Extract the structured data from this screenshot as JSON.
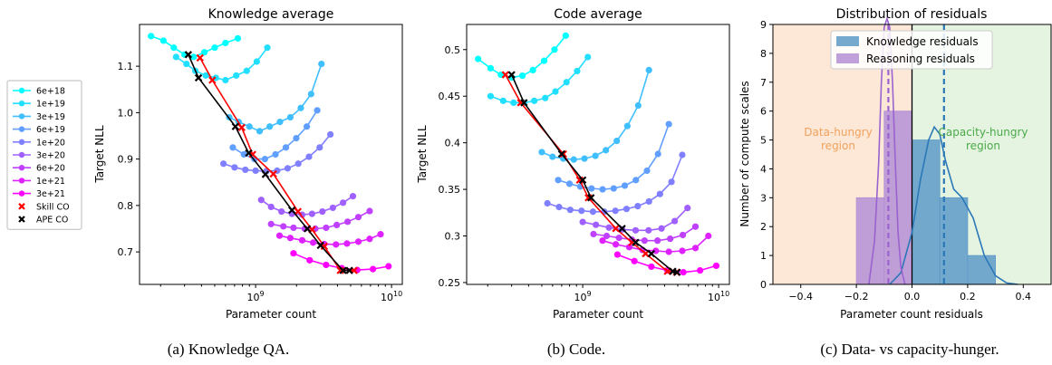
{
  "legend": {
    "entries": [
      {
        "label": "6e+18",
        "color": "#00ffff",
        "marker": "dot"
      },
      {
        "label": "1e+19",
        "color": "#20dfff",
        "marker": "dot"
      },
      {
        "label": "3e+19",
        "color": "#40bfff",
        "marker": "dot"
      },
      {
        "label": "6e+19",
        "color": "#609fff",
        "marker": "dot"
      },
      {
        "label": "1e+20",
        "color": "#807fff",
        "marker": "dot"
      },
      {
        "label": "3e+20",
        "color": "#9f60ff",
        "marker": "dot"
      },
      {
        "label": "6e+20",
        "color": "#bf40ff",
        "marker": "dot"
      },
      {
        "label": "1e+21",
        "color": "#df20ff",
        "marker": "dot"
      },
      {
        "label": "3e+21",
        "color": "#ff00ff",
        "marker": "dot"
      },
      {
        "label": "Skill CO",
        "color": "#ff0000",
        "marker": "x"
      },
      {
        "label": "APE CO",
        "color": "#000000",
        "marker": "x"
      }
    ]
  },
  "chart_data": [
    {
      "type": "line",
      "title": "Knowledge average",
      "xlabel": "Parameter count",
      "ylabel": "Target NLL",
      "xscale": "log",
      "xlim": [
        140000000.0,
        12000000000.0
      ],
      "ylim": [
        0.63,
        1.19
      ],
      "xticks": [
        {
          "value": 1000000000.0,
          "base": "10",
          "exp": "9"
        },
        {
          "value": 10000000000.0,
          "base": "10",
          "exp": "10"
        }
      ],
      "yticks": [
        0.7,
        0.8,
        0.9,
        1.0,
        1.1
      ],
      "series": [
        {
          "color": "#00ffff",
          "x": [
            170000000.0,
            210000000.0,
            250000000.0,
            300000000.0,
            350000000.0,
            420000000.0,
            500000000.0,
            600000000.0,
            740000000.0
          ],
          "y": [
            1.165,
            1.155,
            1.14,
            1.125,
            1.12,
            1.13,
            1.14,
            1.15,
            1.16
          ]
        },
        {
          "color": "#20dfff",
          "x": [
            260000000.0,
            310000000.0,
            360000000.0,
            430000000.0,
            510000000.0,
            600000000.0,
            720000000.0,
            860000000.0,
            1020000000.0,
            1220000000.0
          ],
          "y": [
            1.12,
            1.105,
            1.09,
            1.08,
            1.075,
            1.07,
            1.08,
            1.09,
            1.11,
            1.14
          ]
        },
        {
          "color": "#40bfff",
          "x": [
            640000000.0,
            750000000.0,
            900000000.0,
            1070000000.0,
            1270000000.0,
            1510000000.0,
            1800000000.0,
            2150000000.0,
            2560000000.0,
            3050000000.0
          ],
          "y": [
            0.99,
            0.98,
            0.97,
            0.96,
            0.97,
            0.98,
            0.99,
            1.01,
            1.04,
            1.105
          ]
        },
        {
          "color": "#609fff",
          "x": [
            680000000.0,
            820000000.0,
            980000000.0,
            1170000000.0,
            1400000000.0,
            1670000000.0,
            1990000000.0,
            2380000000.0,
            2840000000.0
          ],
          "y": [
            0.925,
            0.91,
            0.9,
            0.9,
            0.91,
            0.925,
            0.945,
            0.97,
            1.005
          ]
        },
        {
          "color": "#807fff",
          "x": [
            580000000.0,
            700000000.0,
            840000000.0,
            1000000000.0,
            1200000000.0,
            1440000000.0,
            1720000000.0,
            2060000000.0,
            2470000000.0,
            2960000000.0,
            3550000000.0
          ],
          "y": [
            0.89,
            0.882,
            0.877,
            0.875,
            0.874,
            0.875,
            0.88,
            0.89,
            0.905,
            0.925,
            0.953
          ]
        },
        {
          "color": "#9f60ff",
          "x": [
            1100000000.0,
            1300000000.0,
            1550000000.0,
            1850000000.0,
            2200000000.0,
            2600000000.0,
            3100000000.0,
            3700000000.0,
            4400000000.0,
            5200000000.0
          ],
          "y": [
            0.812,
            0.797,
            0.787,
            0.782,
            0.78,
            0.782,
            0.787,
            0.795,
            0.806,
            0.82
          ]
        },
        {
          "color": "#bf40ff",
          "x": [
            1300000000.0,
            1600000000.0,
            1900000000.0,
            2300000000.0,
            2750000000.0,
            3300000000.0,
            3950000000.0,
            4750000000.0,
            5700000000.0,
            6900000000.0
          ],
          "y": [
            0.76,
            0.755,
            0.752,
            0.75,
            0.75,
            0.752,
            0.758,
            0.765,
            0.775,
            0.788
          ]
        },
        {
          "color": "#df20ff",
          "x": [
            1500000000.0,
            1800000000.0,
            2200000000.0,
            2650000000.0,
            3200000000.0,
            3900000000.0,
            4700000000.0,
            5700000000.0,
            6900000000.0,
            8300000000.0
          ],
          "y": [
            0.735,
            0.73,
            0.725,
            0.72,
            0.717,
            0.716,
            0.718,
            0.722,
            0.728,
            0.738
          ]
        },
        {
          "color": "#ff00ff",
          "x": [
            1900000000.0,
            2500000000.0,
            3300000000.0,
            4300000000.0,
            5600000000.0,
            7300000000.0,
            9500000000.0
          ],
          "y": [
            0.697,
            0.682,
            0.672,
            0.665,
            0.661,
            0.663,
            0.669
          ]
        }
      ],
      "skill_co": {
        "x": [
          390000000.0,
          480000000.0,
          790000000.0,
          950000000.0,
          1350000000.0,
          2050000000.0,
          2600000000.0,
          3200000000.0,
          4200000000.0,
          5300000000.0
        ],
        "y": [
          1.118,
          1.07,
          0.968,
          0.91,
          0.868,
          0.787,
          0.748,
          0.712,
          0.66,
          0.66
        ]
      },
      "ape_co": {
        "x": [
          320000000.0,
          380000000.0,
          710000000.0,
          890000000.0,
          1180000000.0,
          1850000000.0,
          2400000000.0,
          3000000000.0,
          4400000000.0,
          4900000000.0
        ],
        "y": [
          1.125,
          1.075,
          0.97,
          0.913,
          0.867,
          0.79,
          0.75,
          0.714,
          0.66,
          0.66
        ]
      }
    },
    {
      "type": "line",
      "title": "Code average",
      "xlabel": "Parameter count",
      "ylabel": "Target NLL",
      "xscale": "log",
      "xlim": [
        140000000.0,
        12000000000.0
      ],
      "ylim": [
        0.248,
        0.527
      ],
      "xticks": [
        {
          "value": 1000000000.0,
          "base": "10",
          "exp": "9"
        },
        {
          "value": 10000000000.0,
          "base": "10",
          "exp": "10"
        }
      ],
      "yticks": [
        0.25,
        0.3,
        0.35,
        0.4,
        0.45,
        0.5
      ],
      "series": [
        {
          "color": "#00ffff",
          "x": [
            170000000.0,
            210000000.0,
            250000000.0,
            300000000.0,
            360000000.0,
            430000000.0,
            520000000.0,
            620000000.0,
            750000000.0
          ],
          "y": [
            0.49,
            0.48,
            0.473,
            0.47,
            0.472,
            0.478,
            0.488,
            0.5,
            0.515
          ]
        },
        {
          "color": "#20dfff",
          "x": [
            210000000.0,
            260000000.0,
            310000000.0,
            370000000.0,
            440000000.0,
            530000000.0,
            630000000.0,
            760000000.0,
            910000000.0,
            1090000000.0
          ],
          "y": [
            0.45,
            0.445,
            0.443,
            0.443,
            0.445,
            0.448,
            0.455,
            0.465,
            0.477,
            0.492
          ]
        },
        {
          "color": "#40bfff",
          "x": [
            500000000.0,
            600000000.0,
            720000000.0,
            860000000.0,
            1030000000.0,
            1240000000.0,
            1480000000.0,
            1780000000.0,
            2130000000.0,
            2560000000.0,
            3070000000.0
          ],
          "y": [
            0.39,
            0.385,
            0.383,
            0.382,
            0.383,
            0.386,
            0.392,
            0.402,
            0.418,
            0.44,
            0.478
          ]
        },
        {
          "color": "#609fff",
          "x": [
            660000000.0,
            800000000.0,
            960000000.0,
            1160000000.0,
            1400000000.0,
            1690000000.0,
            2040000000.0,
            2460000000.0,
            2970000000.0,
            3580000000.0,
            4300000000.0
          ],
          "y": [
            0.36,
            0.356,
            0.353,
            0.351,
            0.35,
            0.351,
            0.354,
            0.36,
            0.37,
            0.388,
            0.42
          ]
        },
        {
          "color": "#807fff",
          "x": [
            550000000.0,
            670000000.0,
            810000000.0,
            980000000.0,
            1190000000.0,
            1440000000.0,
            1740000000.0,
            2100000000.0,
            2540000000.0,
            3070000000.0,
            3700000000.0,
            4500000000.0,
            5400000000.0
          ],
          "y": [
            0.335,
            0.331,
            0.328,
            0.327,
            0.326,
            0.326,
            0.327,
            0.329,
            0.332,
            0.337,
            0.345,
            0.358,
            0.387
          ]
        },
        {
          "color": "#9f60ff",
          "x": [
            1000000000.0,
            1250000000.0,
            1560000000.0,
            1950000000.0,
            2450000000.0,
            3050000000.0,
            3800000000.0,
            4750000000.0,
            5900000000.0
          ],
          "y": [
            0.315,
            0.312,
            0.309,
            0.307,
            0.306,
            0.306,
            0.308,
            0.316,
            0.33
          ]
        },
        {
          "color": "#bf40ff",
          "x": [
            1200000000.0,
            1500000000.0,
            1850000000.0,
            2300000000.0,
            2850000000.0,
            3550000000.0,
            4400000000.0,
            5450000000.0,
            6750000000.0
          ],
          "y": [
            0.302,
            0.3,
            0.298,
            0.296,
            0.295,
            0.295,
            0.297,
            0.301,
            0.31
          ]
        },
        {
          "color": "#df20ff",
          "x": [
            1400000000.0,
            1750000000.0,
            2200000000.0,
            2750000000.0,
            3450000000.0,
            4300000000.0,
            5400000000.0,
            6750000000.0,
            8400000000.0
          ],
          "y": [
            0.295,
            0.291,
            0.288,
            0.285,
            0.284,
            0.283,
            0.284,
            0.287,
            0.3
          ]
        },
        {
          "color": "#ff00ff",
          "x": [
            1800000000.0,
            2400000000.0,
            3200000000.0,
            4200000000.0,
            5500000000.0,
            7300000000.0,
            9600000000.0
          ],
          "y": [
            0.28,
            0.273,
            0.267,
            0.263,
            0.261,
            0.263,
            0.268
          ]
        }
      ],
      "skill_co": {
        "x": [
          270000000.0,
          350000000.0,
          720000000.0,
          950000000.0,
          1100000000.0,
          1750000000.0,
          2300000000.0,
          2900000000.0,
          4200000000.0,
          4900000000.0
        ],
        "y": [
          0.473,
          0.443,
          0.388,
          0.36,
          0.341,
          0.308,
          0.293,
          0.281,
          0.262,
          0.261
        ]
      },
      "ape_co": {
        "x": [
          300000000.0,
          370000000.0,
          700000000.0,
          1000000000.0,
          1150000000.0,
          1950000000.0,
          2450000000.0,
          3200000000.0,
          4600000000.0,
          4950000000.0
        ],
        "y": [
          0.473,
          0.443,
          0.388,
          0.36,
          0.341,
          0.308,
          0.293,
          0.281,
          0.262,
          0.261
        ]
      }
    },
    {
      "type": "bar",
      "title": "Distribution of residuals",
      "xlabel": "Parameter count residuals",
      "ylabel": "Number of compute scales",
      "xlim": [
        -0.5,
        0.5
      ],
      "ylim": [
        0,
        9
      ],
      "xticks": [
        -0.4,
        -0.2,
        0.0,
        0.2,
        0.4
      ],
      "yticks": [
        0,
        1,
        2,
        3,
        4,
        5,
        6,
        7,
        8,
        9
      ],
      "regions": [
        {
          "label_lines": [
            "Data-hungry",
            "region"
          ],
          "range": [
            -0.5,
            0.0
          ],
          "color": "#fde8d7",
          "text_color": "#f0a25c"
        },
        {
          "label_lines": [
            "Capacity-hungry",
            "region"
          ],
          "range": [
            0.0,
            0.5
          ],
          "color": "#e5f3e1",
          "text_color": "#4aaa4a"
        }
      ],
      "series": [
        {
          "name": "Knowledge residuals",
          "color": "#5e9ac7",
          "bins": [
            {
              "x0": 0.0,
              "x1": 0.1,
              "count": 5
            },
            {
              "x0": 0.1,
              "x1": 0.2,
              "count": 3
            },
            {
              "x0": 0.2,
              "x1": 0.3,
              "count": 1
            }
          ],
          "mean": 0.115,
          "kde_x": [
            -0.08,
            -0.04,
            0.0,
            0.03,
            0.06,
            0.08,
            0.1,
            0.12,
            0.15,
            0.18,
            0.22,
            0.26,
            0.3,
            0.34,
            0.38
          ],
          "kde_y": [
            0.0,
            0.4,
            1.8,
            3.6,
            5.0,
            5.45,
            5.2,
            4.3,
            3.3,
            3.0,
            2.3,
            1.0,
            0.3,
            0.05,
            0.0
          ]
        },
        {
          "name": "Reasoning residuals",
          "color": "#b48fd6",
          "bins": [
            {
              "x0": -0.2,
              "x1": -0.1,
              "count": 3
            },
            {
              "x0": -0.1,
              "x1": 0.0,
              "count": 6
            }
          ],
          "mean": -0.085,
          "kde_x": [
            -0.155,
            -0.135,
            -0.12,
            -0.11,
            -0.1,
            -0.09,
            -0.08,
            -0.07,
            -0.06,
            -0.05,
            -0.04,
            -0.025
          ],
          "kde_y": [
            0.0,
            1.5,
            4.2,
            7.0,
            8.9,
            9.2,
            8.9,
            7.0,
            4.2,
            1.8,
            0.6,
            0.0
          ]
        }
      ]
    }
  ],
  "captions": [
    "(a) Knowledge QA.",
    "(b) Code.",
    "(c) Data- vs capacity-hunger."
  ]
}
